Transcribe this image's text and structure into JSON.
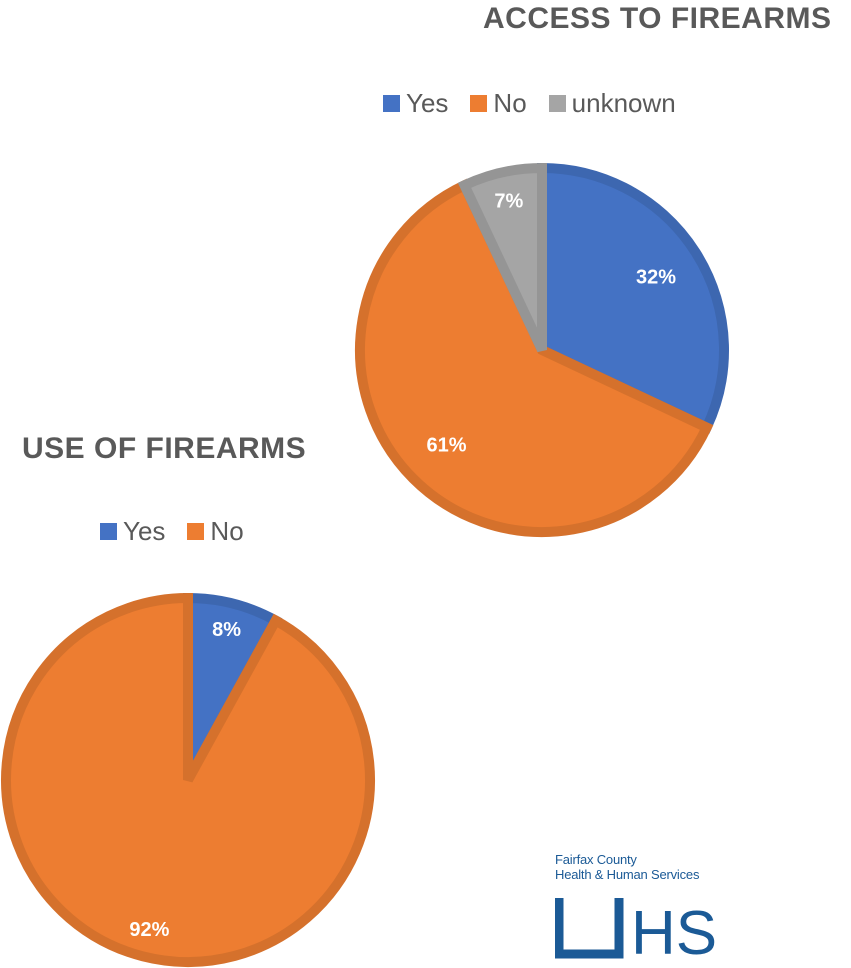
{
  "chart_data": [
    {
      "type": "pie",
      "title": "ACCESS TO FIREARMS",
      "categories": [
        "Yes",
        "No",
        "unknown"
      ],
      "values": [
        32,
        61,
        7
      ],
      "data_labels": [
        "32%",
        "61%",
        "7%"
      ],
      "colors": [
        "#4472c4",
        "#ed7d31",
        "#a5a5a5"
      ],
      "legend": "top"
    },
    {
      "type": "pie",
      "title": "USE OF FIREARMS",
      "categories": [
        "Yes",
        "No"
      ],
      "values": [
        8,
        92
      ],
      "data_labels": [
        "8%",
        "92%"
      ],
      "colors": [
        "#4472c4",
        "#ed7d31"
      ],
      "legend": "top"
    }
  ],
  "logo": {
    "line1": "Fairfax County",
    "line2": "Health & Human Services",
    "mark": "HS"
  }
}
